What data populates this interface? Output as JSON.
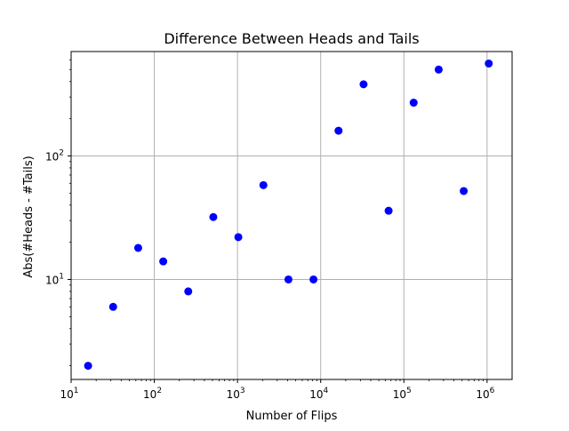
{
  "chart_data": {
    "type": "scatter",
    "title": "Difference Between Heads and Tails",
    "xlabel": "Number of Flips",
    "ylabel": "Abs(#Heads - #Tails)",
    "xscale": "log",
    "yscale": "log",
    "xlim": [
      10,
      2000000
    ],
    "ylim": [
      1.55,
      700
    ],
    "grid": true,
    "marker_color": "#0000ff",
    "grid_color": "#b0b0b0",
    "x_ticks": [
      {
        "base": "10",
        "exp": "1",
        "value": 10
      },
      {
        "base": "10",
        "exp": "2",
        "value": 100
      },
      {
        "base": "10",
        "exp": "3",
        "value": 1000
      },
      {
        "base": "10",
        "exp": "4",
        "value": 10000
      },
      {
        "base": "10",
        "exp": "5",
        "value": 100000
      },
      {
        "base": "10",
        "exp": "6",
        "value": 1000000
      }
    ],
    "y_ticks": [
      {
        "base": "10",
        "exp": "1",
        "value": 10
      },
      {
        "base": "10",
        "exp": "2",
        "value": 100
      }
    ],
    "points": [
      {
        "x": 16,
        "y": 2
      },
      {
        "x": 32,
        "y": 6
      },
      {
        "x": 64,
        "y": 18
      },
      {
        "x": 128,
        "y": 14
      },
      {
        "x": 256,
        "y": 8
      },
      {
        "x": 512,
        "y": 32
      },
      {
        "x": 1024,
        "y": 22
      },
      {
        "x": 2048,
        "y": 58
      },
      {
        "x": 4096,
        "y": 10
      },
      {
        "x": 8192,
        "y": 10
      },
      {
        "x": 16384,
        "y": 160
      },
      {
        "x": 32768,
        "y": 380
      },
      {
        "x": 65536,
        "y": 36
      },
      {
        "x": 131072,
        "y": 270
      },
      {
        "x": 262144,
        "y": 500
      },
      {
        "x": 524288,
        "y": 52
      },
      {
        "x": 1048576,
        "y": 560
      }
    ]
  }
}
